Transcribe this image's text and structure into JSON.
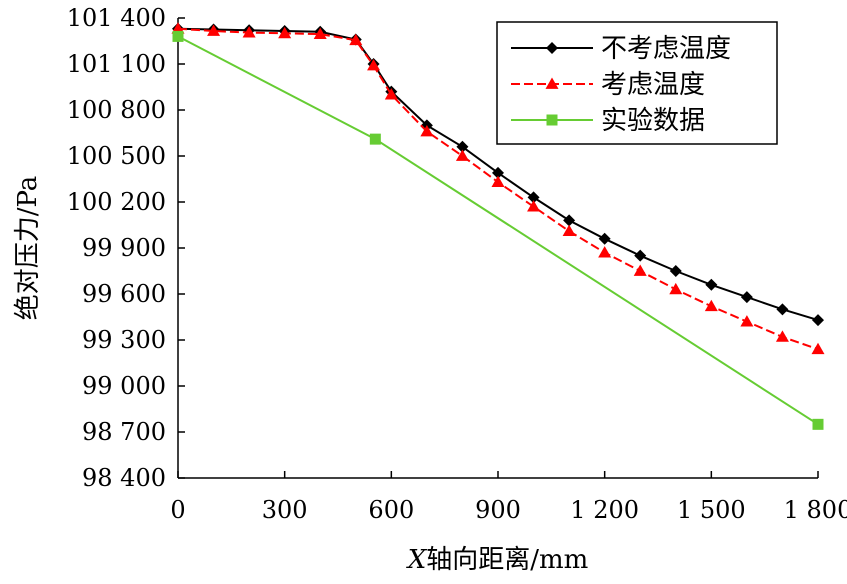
{
  "chart_data": {
    "type": "line",
    "title": "",
    "xlabel": "X轴向距离/mm",
    "xlabel_italic_prefix": "X",
    "xlabel_rest": "轴向距离/mm",
    "ylabel": "绝对压力/Pa",
    "xlim": [
      0,
      1800
    ],
    "ylim": [
      98400,
      101400
    ],
    "x_ticks": [
      0,
      300,
      600,
      900,
      1200,
      1500,
      1800
    ],
    "x_tick_labels": [
      "0",
      "300",
      "600",
      "900",
      "1 200",
      "1 500",
      "1 800"
    ],
    "y_ticks": [
      98400,
      98700,
      99000,
      99300,
      99600,
      99900,
      100200,
      100500,
      100800,
      101100,
      101400
    ],
    "y_tick_labels": [
      "98 400",
      "98 700",
      "99 000",
      "99 300",
      "99 600",
      "99 900",
      "100 200",
      "100 500",
      "100 800",
      "101 100",
      "101 400"
    ],
    "grid": false,
    "legend_position": "top-right",
    "series": [
      {
        "name": "不考虑温度",
        "color": "#000000",
        "line_style": "solid",
        "marker": "diamond",
        "x": [
          0,
          100,
          200,
          300,
          400,
          500,
          550,
          600,
          700,
          800,
          900,
          1000,
          1100,
          1200,
          1300,
          1400,
          1500,
          1600,
          1700,
          1800
        ],
        "y": [
          101330,
          101325,
          101320,
          101315,
          101310,
          101260,
          101100,
          100920,
          100700,
          100560,
          100390,
          100230,
          100080,
          99960,
          99850,
          99750,
          99660,
          99580,
          99500,
          99430
        ]
      },
      {
        "name": "考虑温度",
        "color": "#ff0000",
        "line_style": "dashed",
        "marker": "triangle",
        "x": [
          0,
          100,
          200,
          300,
          400,
          500,
          550,
          600,
          700,
          800,
          900,
          1000,
          1100,
          1200,
          1300,
          1400,
          1500,
          1600,
          1700,
          1800
        ],
        "y": [
          101330,
          101315,
          101305,
          101300,
          101295,
          101255,
          101090,
          100900,
          100660,
          100500,
          100330,
          100170,
          100010,
          99870,
          99750,
          99630,
          99520,
          99420,
          99320,
          99240
        ]
      },
      {
        "name": "实验数据",
        "color": "#66cc33",
        "line_style": "solid",
        "marker": "square",
        "x": [
          0,
          555,
          1800
        ],
        "y": [
          101280,
          100610,
          98750
        ]
      }
    ]
  }
}
